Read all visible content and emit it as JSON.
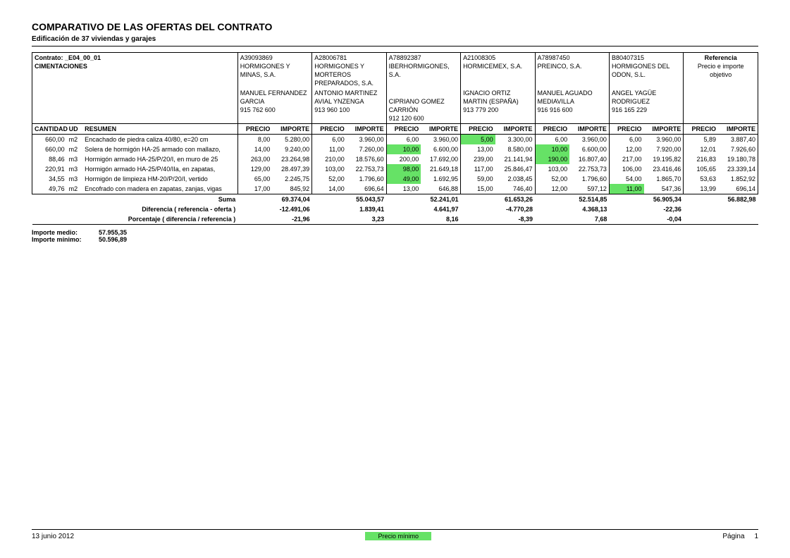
{
  "title": "COMPARATIVO DE LAS OFERTAS DEL CONTRATO",
  "subtitle": "Edificación de 37 viviendas y garajes",
  "contractLine": "Contrato:  _E04_00_01",
  "chapter": "CIMENTACIONES",
  "referenceHeader": "Referencia",
  "referenceSub": "Precio e importe objetivo",
  "colHeaders": {
    "cantidad": "CANTIDAD",
    "ud": "UD",
    "resumen": "RESUMEN",
    "precio": "PRECIO",
    "importe": "IMPORTE"
  },
  "suppliers": [
    {
      "code": "A39093869",
      "name": "HORMIGONES Y MINAS, S.A.",
      "contact": "MANUEL FERNANDEZ GARCIA",
      "phone": "915 762 600"
    },
    {
      "code": "A28006781",
      "name": "HORMIGONES Y MORTEROS PREPARADOS, S.A.",
      "contact": "ANTONIO MARTINEZ AVIAL YNZENGA",
      "phone": "913 960 100"
    },
    {
      "code": "A78892387",
      "name": "IBERHORMIGONES, S.A.",
      "contact": "CIPRIANO GOMEZ CARRIÓN",
      "phone": "912 120 600"
    },
    {
      "code": "A21008305",
      "name": "HORMICEMEX, S.A.",
      "contact": "IGNACIO ORTIZ MARTIN (ESPAÑA)",
      "phone": "913 779 200"
    },
    {
      "code": "A78987450",
      "name": "PREINCO, S.A.",
      "contact": "MANUEL AGUADO MEDIAVILLA",
      "phone": "916 916 600"
    },
    {
      "code": "B80407315",
      "name": "HORMIGONES DEL ODON, S.L.",
      "contact": "ANGEL YAGÜE RODRIGUEZ",
      "phone": "916 165 229"
    }
  ],
  "rows": [
    {
      "qty": "660,00",
      "ud": "m2",
      "desc": "Encachado de piedra caliza 40/80, e=20 cm",
      "cells": [
        [
          "8,00",
          "5.280,00",
          0
        ],
        [
          "6,00",
          "3.960,00",
          0
        ],
        [
          "6,00",
          "3.960,00",
          0
        ],
        [
          "5,00",
          "3.300,00",
          1
        ],
        [
          "6,00",
          "3.960,00",
          0
        ],
        [
          "6,00",
          "3.960,00",
          0
        ]
      ],
      "ref": [
        "5,89",
        "3.887,40"
      ]
    },
    {
      "qty": "660,00",
      "ud": "m2",
      "desc": "Solera de hormigón HA-25 armado con mallazo,",
      "cells": [
        [
          "14,00",
          "9.240,00",
          0
        ],
        [
          "11,00",
          "7.260,00",
          0
        ],
        [
          "10,00",
          "6.600,00",
          1
        ],
        [
          "13,00",
          "8.580,00",
          0
        ],
        [
          "10,00",
          "6.600,00",
          1
        ],
        [
          "12,00",
          "7.920,00",
          0
        ]
      ],
      "ref": [
        "12,01",
        "7.926,60"
      ]
    },
    {
      "qty": "88,46",
      "ud": "m3",
      "desc": "Hormigón armado HA-25/P/20/I, en muro de 25",
      "cells": [
        [
          "263,00",
          "23.264,98",
          0
        ],
        [
          "210,00",
          "18.576,60",
          0
        ],
        [
          "200,00",
          "17.692,00",
          0
        ],
        [
          "239,00",
          "21.141,94",
          0
        ],
        [
          "190,00",
          "16.807,40",
          1
        ],
        [
          "217,00",
          "19.195,82",
          0
        ]
      ],
      "ref": [
        "216,83",
        "19.180,78"
      ]
    },
    {
      "qty": "220,91",
      "ud": "m3",
      "desc": "Hormigón armado HA-25/P/40/IIa, en zapatas,",
      "cells": [
        [
          "129,00",
          "28.497,39",
          0
        ],
        [
          "103,00",
          "22.753,73",
          0
        ],
        [
          "98,00",
          "21.649,18",
          1
        ],
        [
          "117,00",
          "25.846,47",
          0
        ],
        [
          "103,00",
          "22.753,73",
          0
        ],
        [
          "106,00",
          "23.416,46",
          0
        ]
      ],
      "ref": [
        "105,65",
        "23.339,14"
      ]
    },
    {
      "qty": "34,55",
      "ud": "m3",
      "desc": "Hormigón de limpieza HM-20/P/20/I, vertido",
      "cells": [
        [
          "65,00",
          "2.245,75",
          0
        ],
        [
          "52,00",
          "1.796,60",
          0
        ],
        [
          "49,00",
          "1.692,95",
          1
        ],
        [
          "59,00",
          "2.038,45",
          0
        ],
        [
          "52,00",
          "1.796,60",
          0
        ],
        [
          "54,00",
          "1.865,70",
          0
        ]
      ],
      "ref": [
        "53,63",
        "1.852,92"
      ]
    },
    {
      "qty": "49,76",
      "ud": "m2",
      "desc": "Encofrado con madera en zapatas, zanjas, vigas",
      "cells": [
        [
          "17,00",
          "845,92",
          0
        ],
        [
          "14,00",
          "696,64",
          0
        ],
        [
          "13,00",
          "646,88",
          0
        ],
        [
          "15,00",
          "746,40",
          0
        ],
        [
          "12,00",
          "597,12",
          0
        ],
        [
          "11,00",
          "547,36",
          1
        ]
      ],
      "ref": [
        "13,99",
        "696,14"
      ]
    }
  ],
  "summary": {
    "labels": [
      "Suma",
      "Diferencia ( referencia - oferta )",
      "Porcentaje ( diferencia / referencia )"
    ],
    "values": [
      [
        "69.374,04",
        "-12.491,06",
        "-21,96"
      ],
      [
        "55.043,57",
        "1.839,41",
        "3,23"
      ],
      [
        "52.241,01",
        "4.641,97",
        "8,16"
      ],
      [
        "61.653,26",
        "-4.770,28",
        "-8,39"
      ],
      [
        "52.514,85",
        "4.368,13",
        "7,68"
      ],
      [
        "56.905,34",
        "-22,36",
        "-0,04"
      ]
    ],
    "refSum": "56.882,98"
  },
  "extras": {
    "medioLbl": "Importe medio:",
    "medioVal": "57.955,35",
    "minLbl": "Importe mínimo:",
    "minVal": "50.596,89"
  },
  "footer": {
    "date": "13 junio 2012",
    "legend": "Precio mínimo",
    "pageLbl": "Página",
    "pageNum": "1"
  },
  "colors": {
    "highlight": "#66e266"
  }
}
